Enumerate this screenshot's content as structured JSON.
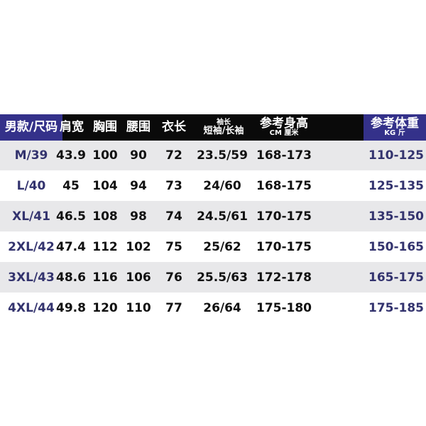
{
  "colors": {
    "header_blue": "#34318a",
    "header_black": "#0a0a0a",
    "row_grey": "#e8e8ea",
    "size_text": "#33336e"
  },
  "headers": {
    "size": "男款/尺码",
    "shoulder": "肩宽",
    "chest": "胸围",
    "waist": "腰围",
    "length": "衣长",
    "sleeve_top": "袖长",
    "sleeve_bottom": "短袖/长袖",
    "height_top": "参考身高",
    "height_bottom": "CM 厘米",
    "weight_top": "参考体重",
    "weight_bottom": "KG 斤"
  },
  "rows": [
    [
      "M/39",
      "43.9",
      "100",
      "90",
      "72",
      "23.5/59",
      "168-173",
      "110-125"
    ],
    [
      "L/40",
      "45",
      "104",
      "94",
      "73",
      "24/60",
      "168-175",
      "125-135"
    ],
    [
      "XL/41",
      "46.5",
      "108",
      "98",
      "74",
      "24.5/61",
      "170-175",
      "135-150"
    ],
    [
      "2XL/42",
      "47.4",
      "112",
      "102",
      "75",
      "25/62",
      "170-175",
      "150-165"
    ],
    [
      "3XL/43",
      "48.6",
      "116",
      "106",
      "76",
      "25.5/63",
      "172-178",
      "165-175"
    ],
    [
      "4XL/44",
      "49.8",
      "120",
      "110",
      "77",
      "26/64",
      "175-180",
      "175-185"
    ]
  ]
}
